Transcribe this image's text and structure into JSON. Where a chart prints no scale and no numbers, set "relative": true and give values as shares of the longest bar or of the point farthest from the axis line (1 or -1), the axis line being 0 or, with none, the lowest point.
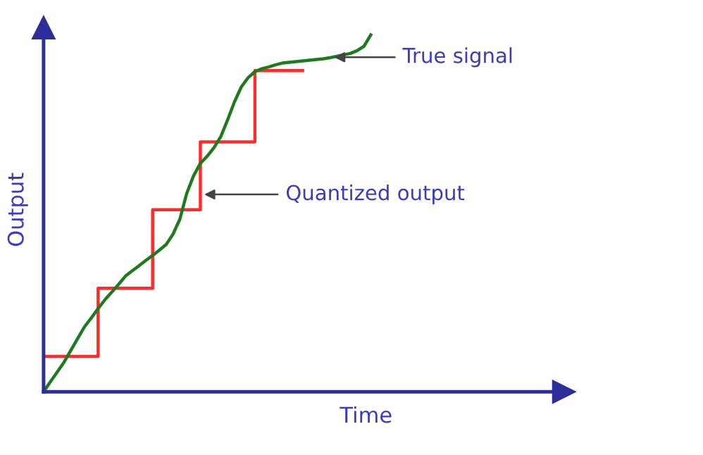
{
  "chart_data": {
    "type": "line",
    "relative": true,
    "xlabel": "Time",
    "ylabel": "Output",
    "categories": [
      null,
      null,
      null,
      null,
      null,
      null,
      null,
      null,
      null,
      null,
      null,
      null,
      null,
      null,
      null,
      null,
      null,
      null,
      null,
      null,
      null,
      null,
      null,
      null,
      null,
      null,
      null,
      null,
      null,
      null,
      null,
      null,
      null,
      null,
      null,
      null,
      null,
      null,
      null,
      null,
      null,
      null,
      null,
      null,
      null,
      null,
      null,
      null,
      null
    ],
    "series": [
      {
        "type": "step",
        "color": "#ff2a2a",
        "values": [
          0.099,
          0.099,
          0.099,
          0.099,
          0.099,
          0.099,
          0.099,
          0.099,
          0.29,
          0.29,
          0.29,
          0.29,
          0.29,
          0.29,
          0.29,
          0.29,
          0.51,
          0.51,
          0.51,
          0.51,
          0.51,
          0.51,
          0.51,
          0.7,
          0.7,
          0.7,
          0.7,
          0.7,
          0.7,
          0.7,
          0.7,
          0.9,
          0.9,
          0.9,
          0.9,
          0.9,
          0.9,
          0.9,
          0.9,
          null,
          null,
          null,
          null,
          null,
          null,
          null,
          null,
          null,
          null
        ]
      },
      {
        "color": "#1e7a1e",
        "values": [
          0,
          0.028,
          0.055,
          0.083,
          0.116,
          0.149,
          0.182,
          0.207,
          0.233,
          0.258,
          0.279,
          0.301,
          0.324,
          0.339,
          0.353,
          0.368,
          0.382,
          0.397,
          0.413,
          0.442,
          0.484,
          0.556,
          0.605,
          0.64,
          0.66,
          0.684,
          0.715,
          0.762,
          0.812,
          0.854,
          0.88,
          0.897,
          0.905,
          0.91,
          0.916,
          0.921,
          0.923,
          0.925,
          0.927,
          0.929,
          0.931,
          0.933,
          0.936,
          0.94,
          0.944,
          0.948,
          0.956,
          0.968,
          1.0
        ]
      }
    ],
    "annotations": [
      "True signal",
      "Quantized output"
    ]
  }
}
